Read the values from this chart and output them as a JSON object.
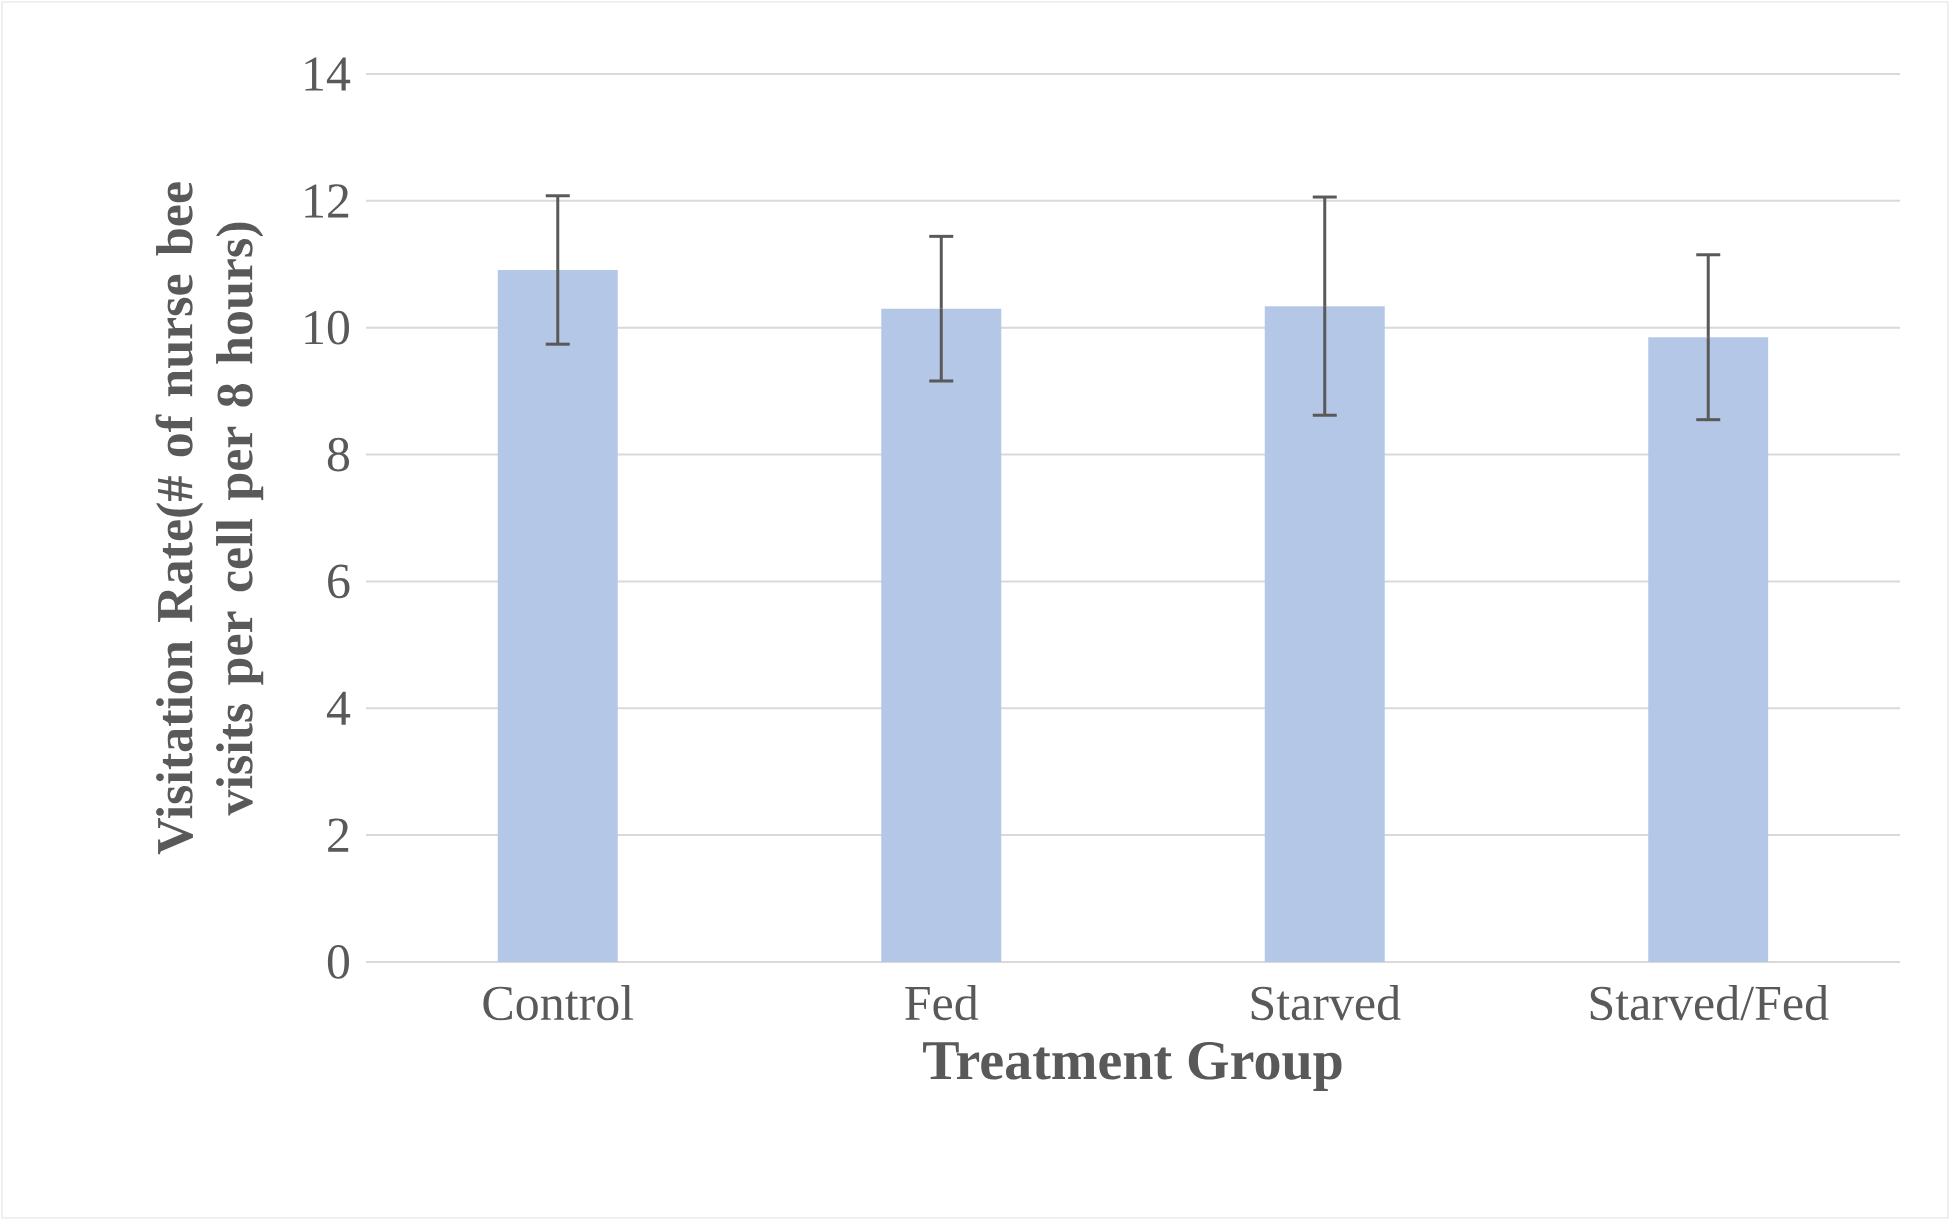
{
  "chart_data": {
    "type": "bar",
    "xlabel": "Treatment Group",
    "ylabel": "Visitation Rate(# of nurse bee visits per cell per 8 hours)",
    "categories": [
      "Control",
      "Fed",
      "Starved",
      "Starved/Fed"
    ],
    "values": [
      10.91,
      10.3,
      10.34,
      9.85
    ],
    "errors": [
      1.17,
      1.14,
      1.72,
      1.3
    ],
    "color": "#b4c7e7",
    "ylim": [
      0,
      14
    ],
    "yticks": [
      0,
      2,
      4,
      6,
      8,
      10,
      12,
      14
    ],
    "grid": "y"
  }
}
